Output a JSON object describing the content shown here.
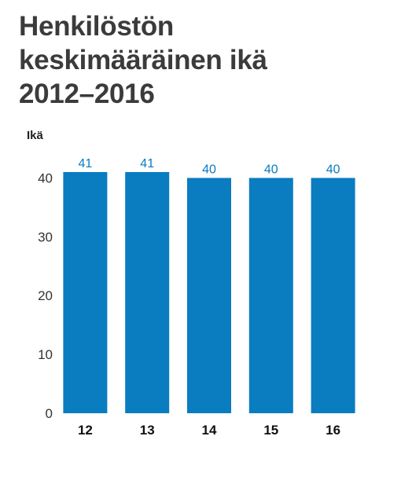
{
  "title_lines": [
    "Henkilöstön",
    "keskimääräinen ikä",
    "2012–2016"
  ],
  "colors": {
    "bar": "#0a7cc0",
    "title": "#3b3b3b",
    "data_label": "#0a7cc0"
  },
  "chart_data": {
    "type": "bar",
    "title": "Henkilöstön keskimääräinen ikä 2012–2016",
    "ylabel": "Ikä",
    "xlabel": "",
    "categories": [
      "12",
      "13",
      "14",
      "15",
      "16"
    ],
    "values": [
      41,
      41,
      40,
      40,
      40
    ],
    "data_labels": [
      "41",
      "41",
      "40",
      "40",
      "40"
    ],
    "ylim": [
      0,
      41
    ],
    "yticks": [
      0,
      10,
      20,
      30,
      40
    ],
    "grid": false,
    "legend": "none"
  }
}
